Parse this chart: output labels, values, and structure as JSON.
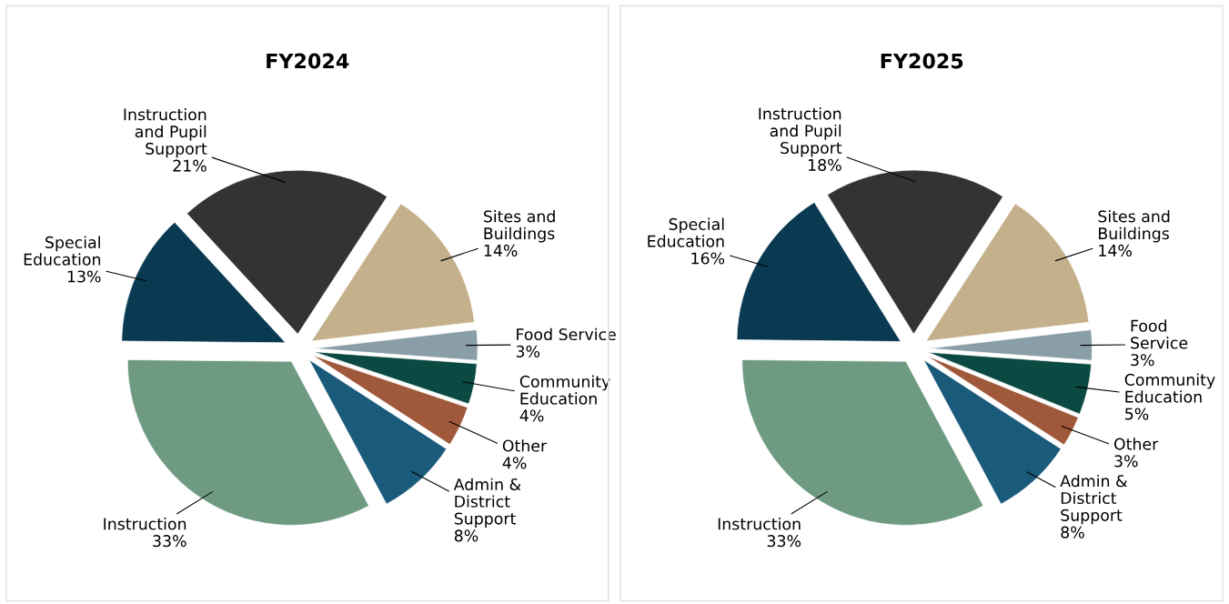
{
  "chart_data": [
    {
      "type": "pie",
      "title": "FY2024",
      "categories": [
        "Sites and\nBuildings",
        "Food Service",
        "Community\nEducation",
        "Other",
        "Admin &\nDistrict\nSupport",
        "Instruction",
        "Special\nEducation",
        "Instruction\nand Pupil\nSupport"
      ],
      "values": [
        14,
        3,
        4,
        4,
        8,
        33,
        13,
        21
      ],
      "value_labels": [
        "14%",
        "3%",
        "4%",
        "4%",
        "8%",
        "33%",
        "13%",
        "21%"
      ],
      "colors": [
        "#c4b08a",
        "#8a9ea8",
        "#0b4a42",
        "#a0583a",
        "#1a5a7a",
        "#6e9a82",
        "#0a3a52",
        "#333333"
      ]
    },
    {
      "type": "pie",
      "title": "FY2025",
      "categories": [
        "Sites and\nBuildings",
        "Food\nService",
        "Community\nEducation",
        "Other",
        "Admin &\nDistrict\nSupport",
        "Instruction",
        "Special\nEducation",
        "Instruction\nand Pupil\nSupport"
      ],
      "values": [
        14,
        3,
        5,
        3,
        8,
        33,
        16,
        18
      ],
      "value_labels": [
        "14%",
        "3%",
        "5%",
        "3%",
        "8%",
        "33%",
        "16%",
        "18%"
      ],
      "colors": [
        "#c4b08a",
        "#8a9ea8",
        "#0b4a42",
        "#a0583a",
        "#1a5a7a",
        "#6e9a82",
        "#0a3a52",
        "#333333"
      ]
    }
  ]
}
